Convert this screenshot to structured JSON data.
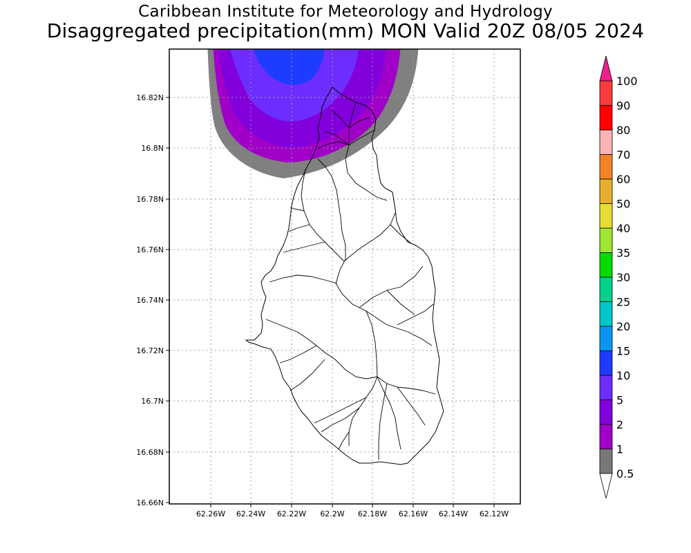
{
  "title": {
    "line1": "Caribbean Institute for Meteorology and Hydrology",
    "line2": "Disaggregated precipitation(mm) MON Valid 20Z 08/05 2024"
  },
  "map": {
    "lat_ticks": [
      "16.82N",
      "16.8N",
      "16.78N",
      "16.76N",
      "16.74N",
      "16.72N",
      "16.7N",
      "16.68N",
      "16.66N"
    ],
    "lon_ticks": [
      "62.26W",
      "62.24W",
      "62.22W",
      "62.2W",
      "62.18W",
      "62.16W",
      "62.14W",
      "62.12W"
    ],
    "precip_bands": [
      {
        "min_mm": 0.5,
        "color": "#808080"
      },
      {
        "min_mm": 1,
        "color": "#a000c8"
      },
      {
        "min_mm": 2,
        "color": "#8200dc"
      },
      {
        "min_mm": 5,
        "color": "#6e2dff"
      },
      {
        "min_mm": 10,
        "color": "#1e3cff"
      }
    ]
  },
  "colorbar": {
    "labels": [
      "0.5",
      "1",
      "2",
      "5",
      "10",
      "15",
      "20",
      "25",
      "30",
      "35",
      "40",
      "50",
      "60",
      "70",
      "80",
      "90",
      "100"
    ],
    "colors": [
      "#787878",
      "#a000c8",
      "#8200dc",
      "#6e2dff",
      "#1e3cff",
      "#0a96f0",
      "#00c8c8",
      "#00d28c",
      "#00dc00",
      "#a0e632",
      "#e6dc32",
      "#e6af2d",
      "#f08228",
      "#fab4b4",
      "#ff0000",
      "#fa3c3c"
    ],
    "top_arrow_color": "#f01e8c",
    "bottom_arrow_color": "#ffffff"
  }
}
